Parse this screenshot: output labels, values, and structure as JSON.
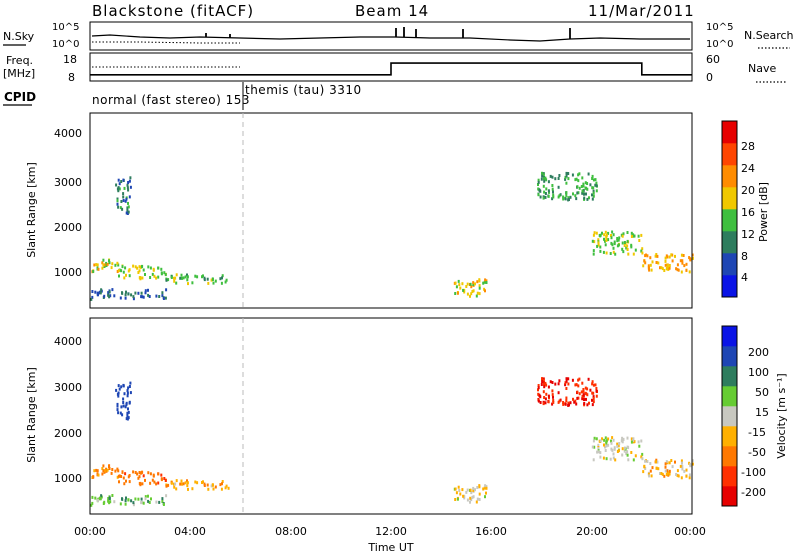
{
  "header": {
    "station": "Blackstone (fitACF)",
    "beam": "Beam 14",
    "date": "11/Mar/2011"
  },
  "noise_panel": {
    "left_label": "N.Sky",
    "right_label": "N.Search",
    "left_ticks": [
      "10^5",
      "10^0"
    ],
    "right_ticks": [
      "10^5",
      "10^0"
    ]
  },
  "freq_panel": {
    "left_label_line1": "Freq.",
    "left_label_line2": "[MHz]",
    "right_label": "Nave",
    "left_ticks": [
      "18",
      "8"
    ],
    "right_ticks": [
      "60",
      "0"
    ]
  },
  "cpid": {
    "label": "CPID",
    "modes": [
      "normal (fast stereo) 153",
      "themis (tau) 3310"
    ]
  },
  "power_panel": {
    "ylabel": "Slant Range [km]",
    "yticks": [
      "4000",
      "3000",
      "2000",
      "1000"
    ],
    "colorbar_label": "Power [dB]",
    "colorbar_ticks": [
      "28",
      "24",
      "20",
      "16",
      "12",
      "8",
      "4"
    ],
    "colorbar_colors": [
      "#0a14e6",
      "#1e46b4",
      "#2e7d5e",
      "#3fbf3f",
      "#f0c800",
      "#ff8c00",
      "#ff4500",
      "#e60000"
    ]
  },
  "velocity_panel": {
    "ylabel": "Slant Range [km]",
    "yticks": [
      "4000",
      "3000",
      "2000",
      "1000"
    ],
    "colorbar_label": "Velocity [m s⁻¹]",
    "colorbar_ticks": [
      "200",
      "100",
      "50",
      "15",
      "-15",
      "-50",
      "-100",
      "-200"
    ],
    "colorbar_colors": [
      "#0a14e6",
      "#1e46b4",
      "#2e7d5e",
      "#66cc33",
      "#c8c8c0",
      "#ffb000",
      "#ff7800",
      "#ff3000",
      "#e60000"
    ]
  },
  "xaxis": {
    "ticks": [
      "00:00",
      "04:00",
      "08:00",
      "12:00",
      "16:00",
      "20:00",
      "00:00"
    ],
    "label": "Time UT"
  },
  "chart_data": {
    "type": "heatmap",
    "x_range_hours": [
      0,
      24
    ],
    "y_range_km": [
      180,
      4500
    ],
    "mode_change_hour": 6.0,
    "frequency_steps": [
      {
        "start_hour": 0,
        "end_hour": 12,
        "value_mhz": 10.2
      },
      {
        "start_hour": 12,
        "end_hour": 22,
        "value_mhz": 14.4
      },
      {
        "start_hour": 22,
        "end_hour": 24,
        "value_mhz": 10.2
      }
    ],
    "scatter_regions": [
      {
        "t0": 0.0,
        "t1": 1.1,
        "r0": 1000,
        "r1": 1300,
        "power": 18,
        "velocity": -60
      },
      {
        "t0": 1.1,
        "t1": 3.0,
        "r0": 850,
        "r1": 1150,
        "power": 16,
        "velocity": -80
      },
      {
        "t0": 3.0,
        "t1": 5.5,
        "r0": 750,
        "r1": 950,
        "power": 14,
        "velocity": -40
      },
      {
        "t0": 0.0,
        "t1": 3.0,
        "r0": 400,
        "r1": 620,
        "power": 8,
        "velocity": 40
      },
      {
        "t0": 1.0,
        "t1": 1.6,
        "r0": 2300,
        "r1": 3100,
        "power": 10,
        "velocity": 150
      },
      {
        "t0": 14.5,
        "t1": 15.8,
        "r0": 450,
        "r1": 850,
        "power": 18,
        "velocity": -10
      },
      {
        "t0": 17.8,
        "t1": 20.2,
        "r0": 2600,
        "r1": 3200,
        "power": 12,
        "velocity": -200
      },
      {
        "t0": 20.0,
        "t1": 22.0,
        "r0": 1400,
        "r1": 1900,
        "power": 16,
        "velocity": 0
      },
      {
        "t0": 22.0,
        "t1": 24.0,
        "r0": 1000,
        "r1": 1400,
        "power": 20,
        "velocity": -30
      }
    ]
  }
}
